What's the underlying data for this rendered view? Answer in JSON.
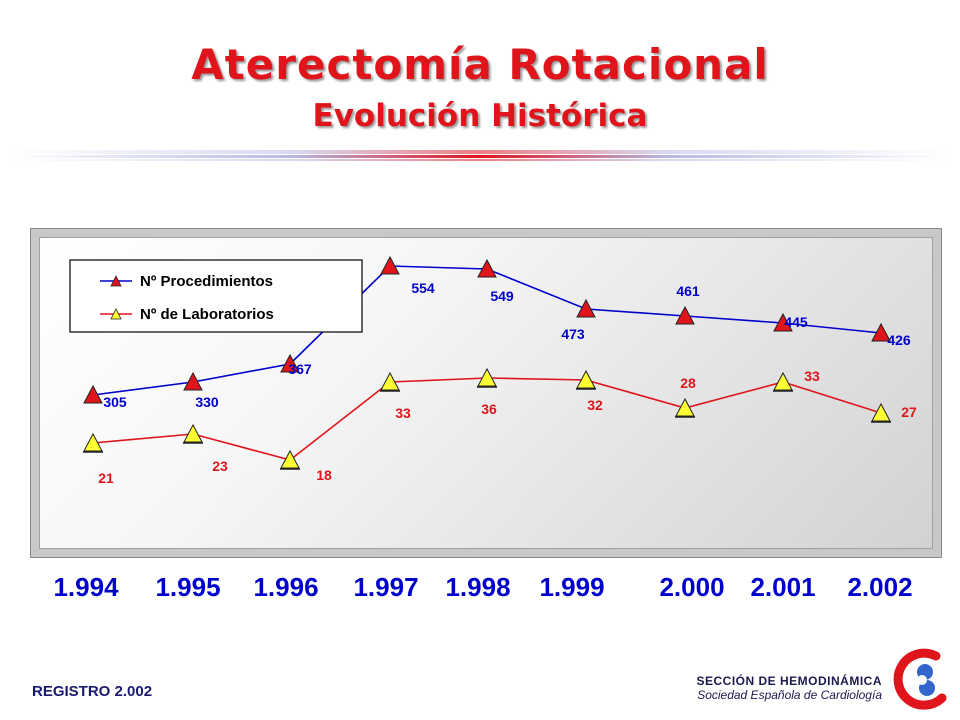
{
  "title": "Aterectomía Rotacional",
  "subtitle": "Evolución Histórica",
  "footer": {
    "left": "REGISTRO 2.002",
    "section": "SECCIÓN DE HEMODINÁMICA",
    "society": "Sociedad Española de Cardiología"
  },
  "icons": {
    "logo": "society-logo-icon"
  },
  "colors": {
    "title": "#e0141b",
    "procedures": "#0000cc",
    "laboratories": "#e0141b",
    "years": "#0000cc"
  },
  "chart_data": {
    "type": "line",
    "title": "",
    "xlabel": "",
    "ylabel": "",
    "categories": [
      "1.994",
      "1.995",
      "1.996",
      "1.997",
      "1.998",
      "1.999",
      "2.000",
      "2.001",
      "2.002"
    ],
    "legend_position": "top-left",
    "grid": false,
    "series": [
      {
        "name": "Nº Procedimientos",
        "values": [
          305,
          330,
          367,
          554,
          549,
          473,
          461,
          445,
          426
        ],
        "color": "#0000cc",
        "marker": "triangle-red"
      },
      {
        "name": "Nº de Laboratorios",
        "values": [
          21,
          23,
          18,
          33,
          36,
          32,
          28,
          33,
          27
        ],
        "color": "#e0141b",
        "marker": "triangle-yellow"
      }
    ]
  }
}
